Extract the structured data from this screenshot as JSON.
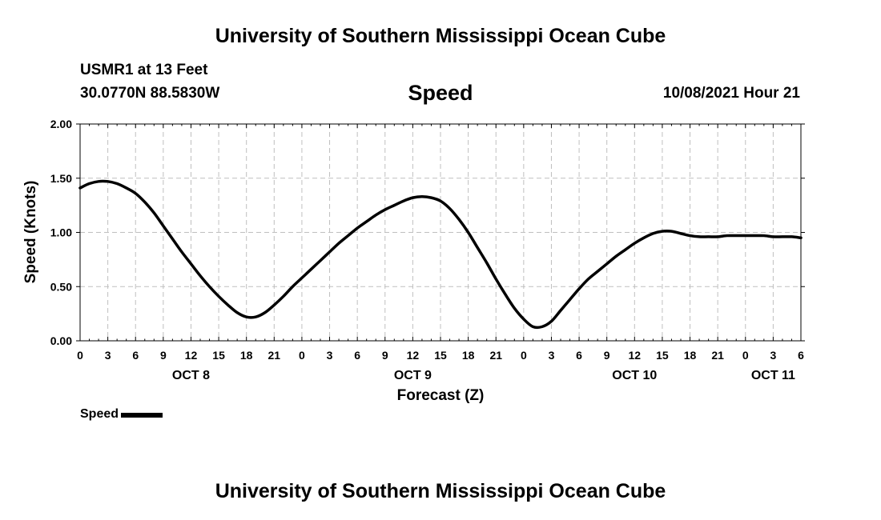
{
  "header": {
    "title": "University of Southern Mississippi Ocean Cube",
    "station": "USMR1 at 13 Feet",
    "coordinates": "30.0770N  88.5830W",
    "chart_title": "Speed",
    "timestamp": "10/08/2021 Hour 21"
  },
  "footer": {
    "title": "University of Southern Mississippi Ocean Cube"
  },
  "legend": {
    "label": "Speed"
  },
  "colors": {
    "line": "#000000",
    "grid": "#bfbfbf",
    "background": "#ffffff"
  },
  "chart_data": {
    "type": "line",
    "title": "Speed",
    "xlabel": "Forecast (Z)",
    "ylabel": "Speed (Knots)",
    "x_unit": "hours from OCT 8 00Z",
    "xlim": [
      0,
      78
    ],
    "ylim": [
      0,
      2
    ],
    "x_ticks": [
      0,
      3,
      6,
      9,
      12,
      15,
      18,
      21,
      24,
      27,
      30,
      33,
      36,
      39,
      42,
      45,
      48,
      51,
      54,
      57,
      60,
      63,
      66,
      69,
      72,
      75,
      78
    ],
    "x_tick_labels": [
      "0",
      "3",
      "6",
      "9",
      "12",
      "15",
      "18",
      "21",
      "0",
      "3",
      "6",
      "9",
      "12",
      "15",
      "18",
      "21",
      "0",
      "3",
      "6",
      "9",
      "12",
      "15",
      "18",
      "21",
      "0",
      "3",
      "6"
    ],
    "y_ticks": [
      0,
      0.5,
      1,
      1.5,
      2
    ],
    "y_tick_labels": [
      "0.00",
      "0.50",
      "1.00",
      "1.50",
      "2.00"
    ],
    "date_labels": [
      {
        "label": "OCT 8",
        "hour": 12
      },
      {
        "label": "OCT 9",
        "hour": 36
      },
      {
        "label": "OCT 10",
        "hour": 60
      },
      {
        "label": "OCT 11",
        "hour": 75
      }
    ],
    "grid": true,
    "legend_position": "bottom-left",
    "series": [
      {
        "name": "Speed",
        "x": [
          0,
          1,
          2,
          3,
          4,
          5,
          6,
          7,
          8,
          9,
          10,
          11,
          12,
          13,
          14,
          15,
          16,
          17,
          18,
          19,
          20,
          21,
          22,
          23,
          24,
          25,
          26,
          27,
          28,
          29,
          30,
          31,
          32,
          33,
          34,
          35,
          36,
          37,
          38,
          39,
          40,
          41,
          42,
          43,
          44,
          45,
          46,
          47,
          48,
          49,
          50,
          51,
          52,
          53,
          54,
          55,
          56,
          57,
          58,
          59,
          60,
          61,
          62,
          63,
          64,
          65,
          66,
          67,
          68,
          69,
          70,
          71,
          72,
          73,
          74,
          75,
          76,
          77,
          78
        ],
        "y": [
          1.41,
          1.45,
          1.47,
          1.47,
          1.45,
          1.41,
          1.36,
          1.28,
          1.18,
          1.06,
          0.94,
          0.82,
          0.71,
          0.6,
          0.5,
          0.41,
          0.33,
          0.26,
          0.22,
          0.22,
          0.26,
          0.33,
          0.41,
          0.5,
          0.58,
          0.66,
          0.74,
          0.82,
          0.9,
          0.97,
          1.04,
          1.1,
          1.16,
          1.21,
          1.25,
          1.29,
          1.32,
          1.33,
          1.32,
          1.29,
          1.22,
          1.12,
          1.0,
          0.86,
          0.72,
          0.57,
          0.43,
          0.3,
          0.2,
          0.13,
          0.13,
          0.18,
          0.28,
          0.38,
          0.48,
          0.57,
          0.64,
          0.71,
          0.78,
          0.84,
          0.9,
          0.95,
          0.99,
          1.01,
          1.01,
          0.99,
          0.97,
          0.96,
          0.96,
          0.96,
          0.97,
          0.97,
          0.97,
          0.97,
          0.97,
          0.96,
          0.96,
          0.96,
          0.95
        ]
      }
    ]
  }
}
